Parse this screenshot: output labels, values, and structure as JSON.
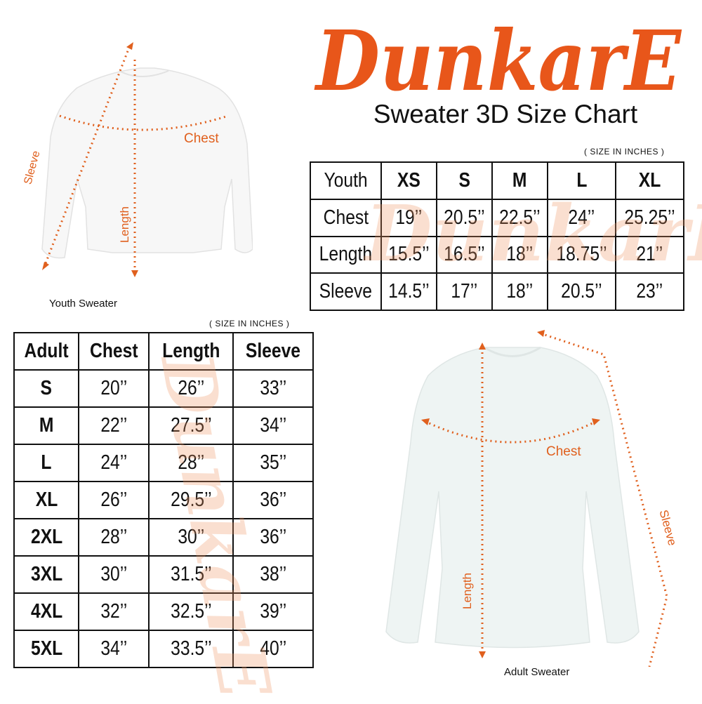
{
  "brand": {
    "logo_text": "DunkarE",
    "color": "#E8561A"
  },
  "title": "Sweater 3D Size Chart",
  "youth": {
    "unit_note": "( SIZE IN INCHES )",
    "caption": "Youth Sweater",
    "labels": {
      "chest": "Chest",
      "length": "Length",
      "sleeve": "Sleeve"
    },
    "table": {
      "headers": [
        "Youth",
        "XS",
        "S",
        "M",
        "L",
        "XL"
      ],
      "rows": [
        [
          "Chest",
          "19’’",
          "20.5’’",
          "22.5’’",
          "24’’",
          "25.25’’"
        ],
        [
          "Length",
          "15.5’’",
          "16.5’’",
          "18’’",
          "18.75’’",
          "21’’"
        ],
        [
          "Sleeve",
          "14.5’’",
          "17’’",
          "18’’",
          "20.5’’",
          "23’’"
        ]
      ]
    }
  },
  "adult": {
    "unit_note": "( SIZE IN INCHES )",
    "caption": "Adult Sweater",
    "labels": {
      "chest": "Chest",
      "length": "Length",
      "sleeve": "Sleeve"
    },
    "table": {
      "headers": [
        "Adult",
        "Chest",
        "Length",
        "Sleeve"
      ],
      "rows": [
        [
          "S",
          "20’’",
          "26’’",
          "33’’"
        ],
        [
          "M",
          "22’’",
          "27.5’’",
          "34’’"
        ],
        [
          "L",
          "24’’",
          "28’’",
          "35’’"
        ],
        [
          "XL",
          "26’’",
          "29.5’’",
          "36’’"
        ],
        [
          "2XL",
          "28’’",
          "30’’",
          "36’’"
        ],
        [
          "3XL",
          "30’’",
          "31.5’’",
          "38’’"
        ],
        [
          "4XL",
          "32’’",
          "32.5’’",
          "39’’"
        ],
        [
          "5XL",
          "34’’",
          "33.5’’",
          "40’’"
        ]
      ]
    }
  }
}
